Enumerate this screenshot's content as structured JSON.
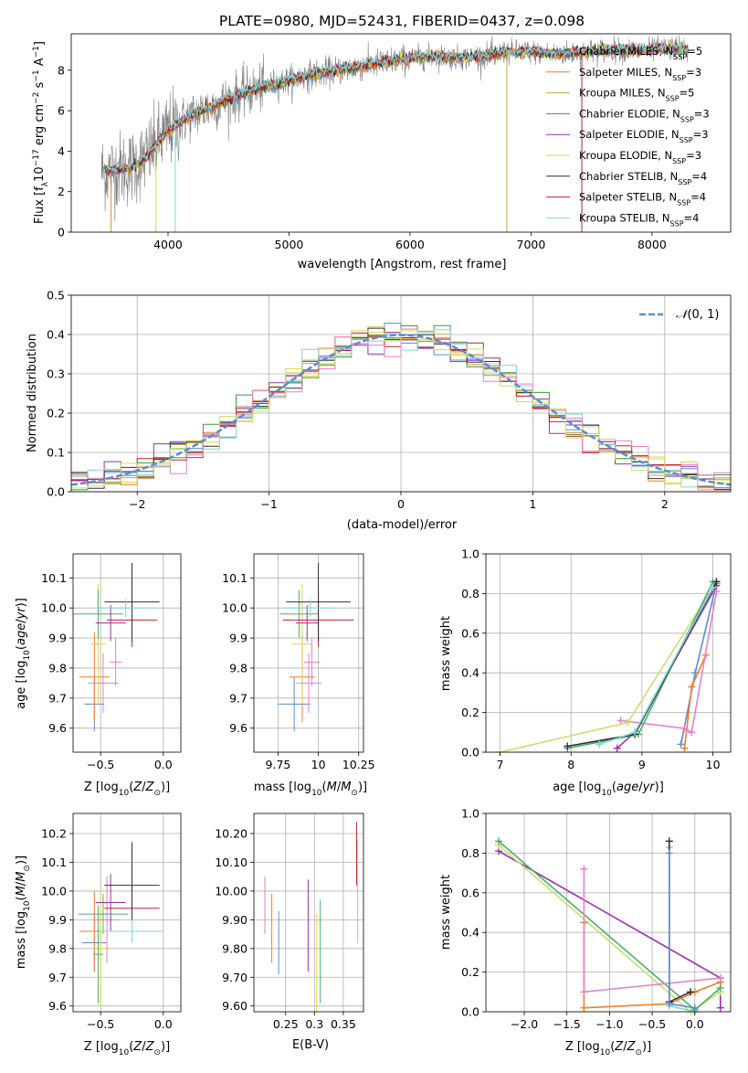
{
  "figure": {
    "title": "PLATE=0980, MJD=52431, FIBERID=0437, z=0.098"
  },
  "colors": {
    "data": "#808080",
    "Chabrier MILES": "#5b8bd6",
    "Salpeter MILES": "#f07f27",
    "Kroupa MILES": "#c8a23c",
    "Chabrier ELODIE": "#3c9a3c",
    "Salpeter ELODIE": "#9b2fb0",
    "Kroupa ELODIE": "#e0d43c",
    "Chabrier STELIB": "#303030",
    "Salpeter STELIB": "#c0232a",
    "Kroupa STELIB": "#7fd6d6",
    "pink": "#e77fc8",
    "lime": "#c8e06a",
    "green": "#4caf6a"
  },
  "chart_data": [
    {
      "id": "spectrum",
      "type": "line",
      "xlabel": "wavelength [Angstrom, rest frame]",
      "ylabel": "Flux [f_λ 10^-17 erg cm^-2 s^-1 A^-1]",
      "xlim": [
        3200,
        8650
      ],
      "ylim": [
        0,
        9.8
      ],
      "xticks": [
        4000,
        5000,
        6000,
        7000,
        8000
      ],
      "yticks": [
        0,
        2,
        4,
        6,
        8
      ],
      "grid": false,
      "legend_position": "bottom-right",
      "legend": [
        {
          "name": "Chabrier MILES",
          "nssp": "5"
        },
        {
          "name": "Salpeter MILES",
          "nssp": "3"
        },
        {
          "name": "Kroupa MILES",
          "nssp": "5"
        },
        {
          "name": "Chabrier ELODIE",
          "nssp": "3"
        },
        {
          "name": "Salpeter ELODIE",
          "nssp": "3"
        },
        {
          "name": "Kroupa ELODIE",
          "nssp": "3"
        },
        {
          "name": "Chabrier STELIB",
          "nssp": "4"
        },
        {
          "name": "Salpeter STELIB",
          "nssp": "4"
        },
        {
          "name": "Kroupa STELIB",
          "nssp": "4"
        }
      ],
      "continuum": {
        "x": [
          3500,
          3700,
          3800,
          4000,
          4200,
          4400,
          4600,
          4800,
          5000,
          5200,
          5400,
          5600,
          5800,
          6000,
          6200,
          6400,
          6600,
          6800,
          7000,
          7200,
          7400,
          7600,
          7800,
          8000,
          8200,
          8300
        ],
        "y": [
          3.0,
          3.2,
          3.6,
          5.0,
          5.8,
          6.3,
          6.8,
          7.2,
          7.5,
          7.8,
          8.0,
          8.2,
          8.4,
          8.6,
          8.7,
          8.6,
          8.7,
          8.9,
          8.9,
          8.8,
          8.9,
          9.0,
          9.0,
          9.0,
          9.1,
          9.0
        ]
      }
    },
    {
      "id": "residuals",
      "type": "line",
      "xlabel": "(data-model)/error",
      "ylabel": "Normed distribution",
      "xlim": [
        -2.5,
        2.5
      ],
      "ylim": [
        0,
        0.5
      ],
      "xticks": [
        -2,
        -1,
        0,
        1,
        2
      ],
      "yticks": [
        0.0,
        0.1,
        0.2,
        0.3,
        0.4,
        0.5
      ],
      "grid": true,
      "legend_position": "top-right",
      "legend": [
        "N(0,1)"
      ]
    },
    {
      "id": "age-vs-z",
      "type": "scatter",
      "xlabel": "Z [log10(Z/Z⊙)]",
      "ylabel": "age [log10(age/yr)]",
      "xlim": [
        -0.72,
        0.14
      ],
      "ylim": [
        9.52,
        10.18
      ],
      "xticks": [
        -0.5,
        0.0
      ],
      "yticks": [
        9.6,
        9.7,
        9.8,
        9.9,
        10.0,
        10.1
      ],
      "grid": true
    },
    {
      "id": "age-vs-mass",
      "type": "scatter",
      "xlabel": "mass [log10(M/M⊙)]",
      "ylabel": "",
      "xlim": [
        9.6,
        10.28
      ],
      "ylim": [
        9.52,
        10.18
      ],
      "xticks": [
        9.75,
        10.0,
        10.25
      ],
      "yticks": [
        9.6,
        9.7,
        9.8,
        9.9,
        10.0,
        10.1
      ],
      "grid": true
    },
    {
      "id": "weight-vs-age",
      "type": "line",
      "xlabel": "age [log10(age/yr)]",
      "ylabel": "mass weight",
      "xlim": [
        6.8,
        10.25
      ],
      "ylim": [
        0,
        1.0
      ],
      "xticks": [
        7,
        8,
        9,
        10
      ],
      "yticks": [
        0.0,
        0.2,
        0.4,
        0.6,
        0.8,
        1.0
      ],
      "grid": true
    },
    {
      "id": "mass-vs-z",
      "type": "scatter",
      "xlabel": "Z [log10(Z/Z⊙)]",
      "ylabel": "mass [log10(M/M⊙)]",
      "xlim": [
        -0.72,
        0.14
      ],
      "ylim": [
        9.58,
        10.27
      ],
      "xticks": [
        -0.5,
        0.0
      ],
      "yticks": [
        9.6,
        9.7,
        9.8,
        9.9,
        10.0,
        10.1,
        10.2
      ],
      "grid": true
    },
    {
      "id": "mass-vs-ebv",
      "type": "scatter",
      "xlabel": "E(B-V)",
      "ylabel": "",
      "xlim": [
        0.195,
        0.385
      ],
      "ylim": [
        9.58,
        10.27
      ],
      "xticks": [
        0.25,
        0.3,
        0.35
      ],
      "yticks": [
        9.6,
        9.7,
        9.8,
        9.9,
        10.0,
        10.1,
        10.2
      ],
      "grid": true
    },
    {
      "id": "weight-vs-z",
      "type": "line",
      "xlabel": "Z [log10(Z/Z⊙)]",
      "ylabel": "mass weight",
      "xlim": [
        -2.45,
        0.42
      ],
      "ylim": [
        0,
        1.0
      ],
      "xticks": [
        -2.0,
        -1.5,
        -1.0,
        -0.5,
        0.0
      ],
      "yticks": [
        0.0,
        0.2,
        0.4,
        0.6,
        0.8,
        1.0
      ],
      "grid": true
    }
  ]
}
